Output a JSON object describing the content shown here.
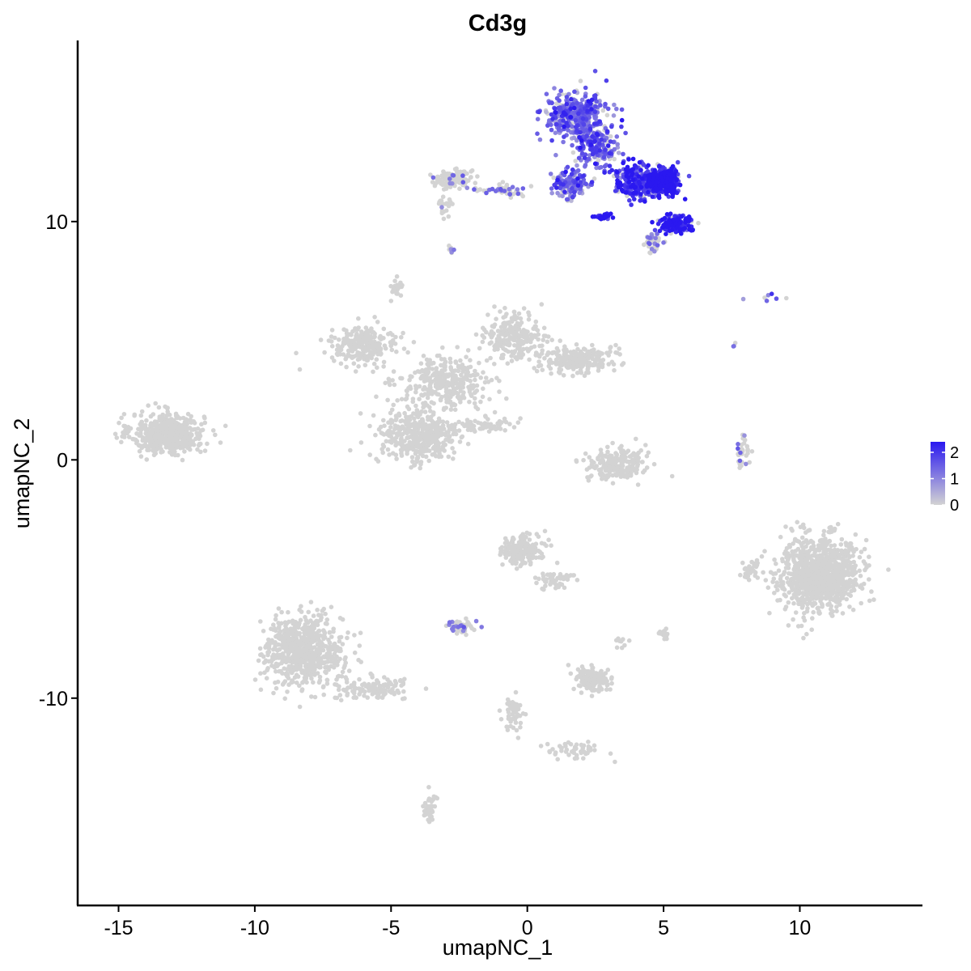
{
  "chart_data": {
    "type": "scatter",
    "title": "Cd3g",
    "xlabel": "umapNC_1",
    "ylabel": "umapNC_2",
    "xlim": [
      -16.5,
      14.5
    ],
    "ylim": [
      -18.7,
      17.6
    ],
    "x_ticks": [
      {
        "value": -15,
        "label": "-15"
      },
      {
        "value": -10,
        "label": "-10"
      },
      {
        "value": -5,
        "label": "-5"
      },
      {
        "value": 0,
        "label": "0"
      },
      {
        "value": 5,
        "label": "5"
      },
      {
        "value": 10,
        "label": "10"
      }
    ],
    "y_ticks": [
      {
        "value": 10,
        "label": "10"
      },
      {
        "value": 0,
        "label": "0"
      },
      {
        "value": -10,
        "label": "-10"
      }
    ],
    "color_scale": {
      "low_color": "#d3d3d3",
      "high_color": "#2a18f0",
      "range": [
        0,
        2.4
      ],
      "ticks": [
        {
          "value": 0,
          "label": "0"
        },
        {
          "value": 1,
          "label": "1"
        },
        {
          "value": 2,
          "label": "2"
        }
      ]
    },
    "legend_position": "right",
    "grid": false,
    "clusters": [
      {
        "center": [
          -13.2,
          1.1
        ],
        "spread": [
          1.1,
          0.7
        ],
        "n": 550,
        "expression": 0
      },
      {
        "center": [
          -8.2,
          -8.0
        ],
        "spread": [
          1.2,
          1.2
        ],
        "n": 650,
        "expression": 0
      },
      {
        "center": [
          -5.6,
          -9.6
        ],
        "spread": [
          1.2,
          0.4
        ],
        "n": 120,
        "expression": 0
      },
      {
        "center": [
          -6.0,
          4.8
        ],
        "spread": [
          1.0,
          0.6
        ],
        "n": 250,
        "expression": 0
      },
      {
        "center": [
          -4.0,
          1.0
        ],
        "spread": [
          1.3,
          1.0
        ],
        "n": 400,
        "expression": 0
      },
      {
        "center": [
          -3.0,
          3.2
        ],
        "spread": [
          1.4,
          0.9
        ],
        "n": 320,
        "expression": 0
      },
      {
        "center": [
          -0.5,
          5.2
        ],
        "spread": [
          0.9,
          0.8
        ],
        "n": 230,
        "expression": 0
      },
      {
        "center": [
          1.8,
          4.2
        ],
        "spread": [
          1.1,
          0.5
        ],
        "n": 230,
        "expression": 0
      },
      {
        "center": [
          -4.8,
          7.2
        ],
        "spread": [
          0.2,
          0.3
        ],
        "n": 25,
        "expression": 0
      },
      {
        "center": [
          -1.5,
          1.5
        ],
        "spread": [
          0.9,
          0.2
        ],
        "n": 60,
        "expression": 0
      },
      {
        "center": [
          3.3,
          -0.2
        ],
        "spread": [
          0.9,
          0.6
        ],
        "n": 190,
        "expression": 0
      },
      {
        "center": [
          7.9,
          0.3
        ],
        "spread": [
          0.2,
          0.6
        ],
        "n": 35,
        "expression": 0.1
      },
      {
        "center": [
          10.7,
          -4.8
        ],
        "spread": [
          1.2,
          1.3
        ],
        "n": 1000,
        "expression": 0
      },
      {
        "center": [
          8.2,
          -4.6
        ],
        "spread": [
          0.3,
          0.4
        ],
        "n": 30,
        "expression": 0
      },
      {
        "center": [
          -0.2,
          -3.8
        ],
        "spread": [
          0.6,
          0.5
        ],
        "n": 200,
        "expression": 0
      },
      {
        "center": [
          1.0,
          -5.0
        ],
        "spread": [
          0.6,
          0.3
        ],
        "n": 50,
        "expression": 0
      },
      {
        "center": [
          -2.4,
          -7.0
        ],
        "spread": [
          0.4,
          0.2
        ],
        "n": 60,
        "expression": 0.2
      },
      {
        "center": [
          2.4,
          -9.2
        ],
        "spread": [
          0.5,
          0.4
        ],
        "n": 160,
        "expression": 0
      },
      {
        "center": [
          -0.5,
          -10.8
        ],
        "spread": [
          0.3,
          0.7
        ],
        "n": 50,
        "expression": 0
      },
      {
        "center": [
          1.7,
          -12.2
        ],
        "spread": [
          0.8,
          0.3
        ],
        "n": 50,
        "expression": 0
      },
      {
        "center": [
          -3.6,
          -14.6
        ],
        "spread": [
          0.2,
          0.5
        ],
        "n": 40,
        "expression": 0
      },
      {
        "center": [
          5.0,
          -7.3
        ],
        "spread": [
          0.2,
          0.2
        ],
        "n": 15,
        "expression": 0
      },
      {
        "center": [
          3.4,
          -7.6
        ],
        "spread": [
          0.2,
          0.2
        ],
        "n": 10,
        "expression": 0
      },
      {
        "center": [
          -2.7,
          11.8
        ],
        "spread": [
          0.6,
          0.3
        ],
        "n": 120,
        "expression": 0.1
      },
      {
        "center": [
          -1.0,
          11.3
        ],
        "spread": [
          1.0,
          0.2
        ],
        "n": 50,
        "expression": 0.4
      },
      {
        "center": [
          -3.0,
          10.6
        ],
        "spread": [
          0.2,
          0.4
        ],
        "n": 20,
        "expression": 0.05
      },
      {
        "center": [
          -2.8,
          8.8
        ],
        "spread": [
          0.1,
          0.2
        ],
        "n": 8,
        "expression": 0.2
      },
      {
        "center": [
          1.8,
          14.5
        ],
        "spread": [
          0.9,
          0.8
        ],
        "n": 350,
        "expression": 1.4
      },
      {
        "center": [
          2.5,
          13.2
        ],
        "spread": [
          0.7,
          0.8
        ],
        "n": 200,
        "expression": 1.5
      },
      {
        "center": [
          1.6,
          11.6
        ],
        "spread": [
          0.6,
          0.5
        ],
        "n": 140,
        "expression": 1.3
      },
      {
        "center": [
          3.9,
          11.7
        ],
        "spread": [
          0.7,
          0.6
        ],
        "n": 230,
        "expression": 2.0
      },
      {
        "center": [
          5.0,
          11.7
        ],
        "spread": [
          0.5,
          0.5
        ],
        "n": 260,
        "expression": 2.3
      },
      {
        "center": [
          5.4,
          9.9
        ],
        "spread": [
          0.5,
          0.3
        ],
        "n": 160,
        "expression": 2.3
      },
      {
        "center": [
          2.8,
          10.2
        ],
        "spread": [
          0.3,
          0.1
        ],
        "n": 30,
        "expression": 2.1
      },
      {
        "center": [
          4.6,
          9.1
        ],
        "spread": [
          0.3,
          0.3
        ],
        "n": 40,
        "expression": 0.3
      },
      {
        "center": [
          8.9,
          6.8
        ],
        "spread": [
          0.9,
          0.15
        ],
        "n": 7,
        "expression": 1.4
      },
      {
        "center": [
          7.6,
          4.8
        ],
        "spread": [
          0.05,
          0.1
        ],
        "n": 3,
        "expression": 1.0
      }
    ]
  }
}
